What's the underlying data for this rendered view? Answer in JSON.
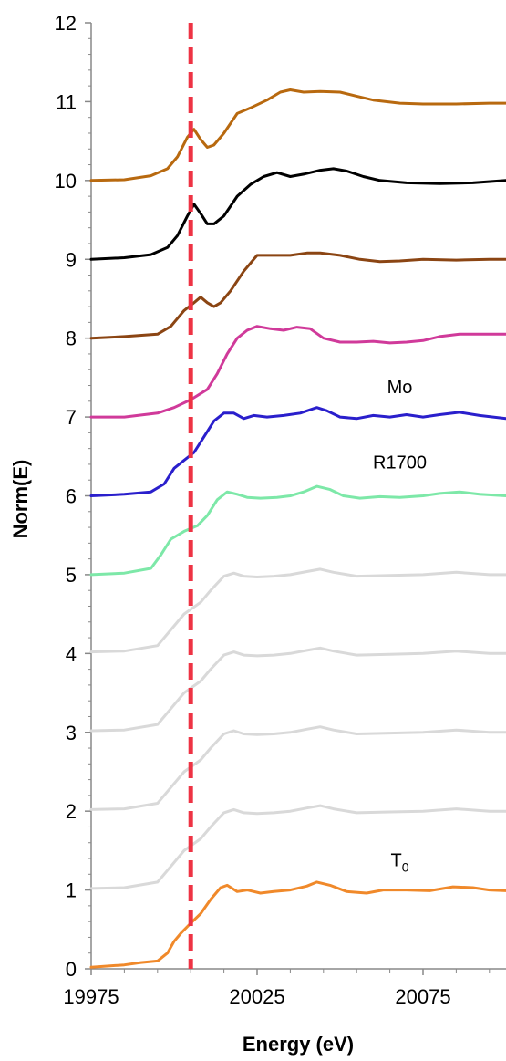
{
  "chart_data": {
    "type": "line",
    "xlabel": "Energy (eV)",
    "ylabel": "Norm(E)",
    "xlim": [
      19975,
      20100
    ],
    "ylim": [
      0,
      12
    ],
    "x_ticks": [
      19975,
      20025,
      20075
    ],
    "y_ticks": [
      0,
      1,
      2,
      3,
      4,
      5,
      6,
      7,
      8,
      9,
      10,
      11,
      12
    ],
    "grid": false,
    "reference_line": {
      "x": 20005,
      "color": "#ee3344",
      "style": "dashed"
    },
    "annotations": [
      {
        "text": "Mo",
        "x": 20068,
        "y": 7.3
      },
      {
        "text": "R1700",
        "x": 20068,
        "y": 6.35
      },
      {
        "text": "T",
        "subscript": "0",
        "x": 20068,
        "y": 1.3
      }
    ],
    "series": [
      {
        "color": "#f0892a",
        "width": 3,
        "points": [
          [
            19975,
            0.02
          ],
          [
            19985,
            0.05
          ],
          [
            19990,
            0.08
          ],
          [
            19995,
            0.1
          ],
          [
            19998,
            0.2
          ],
          [
            20000,
            0.35
          ],
          [
            20002,
            0.45
          ],
          [
            20005,
            0.58
          ],
          [
            20008,
            0.7
          ],
          [
            20011,
            0.88
          ],
          [
            20014,
            1.03
          ],
          [
            20016,
            1.06
          ],
          [
            20019,
            0.98
          ],
          [
            20022,
            1.0
          ],
          [
            20026,
            0.96
          ],
          [
            20030,
            0.98
          ],
          [
            20035,
            1.0
          ],
          [
            20040,
            1.05
          ],
          [
            20043,
            1.1
          ],
          [
            20047,
            1.06
          ],
          [
            20052,
            0.98
          ],
          [
            20058,
            0.96
          ],
          [
            20063,
            1.0
          ],
          [
            20070,
            1.0
          ],
          [
            20077,
            0.99
          ],
          [
            20084,
            1.04
          ],
          [
            20090,
            1.03
          ],
          [
            20095,
            1.0
          ],
          [
            20100,
            0.99
          ]
        ]
      },
      {
        "color": "#d9d9d9",
        "width": 3,
        "points": [
          [
            19975,
            1.02
          ],
          [
            19985,
            1.03
          ],
          [
            19995,
            1.1
          ],
          [
            19999,
            1.3
          ],
          [
            20003,
            1.5
          ],
          [
            20008,
            1.65
          ],
          [
            20011,
            1.8
          ],
          [
            20015,
            1.98
          ],
          [
            20018,
            2.02
          ],
          [
            20021,
            1.98
          ],
          [
            20025,
            1.97
          ],
          [
            20030,
            1.98
          ],
          [
            20035,
            2.0
          ],
          [
            20040,
            2.04
          ],
          [
            20044,
            2.07
          ],
          [
            20048,
            2.03
          ],
          [
            20055,
            1.98
          ],
          [
            20065,
            1.99
          ],
          [
            20075,
            2.0
          ],
          [
            20085,
            2.03
          ],
          [
            20095,
            2.0
          ],
          [
            20100,
            2.0
          ]
        ]
      },
      {
        "color": "#d9d9d9",
        "width": 3,
        "points": [
          [
            19975,
            2.02
          ],
          [
            19985,
            2.03
          ],
          [
            19995,
            2.1
          ],
          [
            19999,
            2.3
          ],
          [
            20003,
            2.5
          ],
          [
            20008,
            2.65
          ],
          [
            20011,
            2.8
          ],
          [
            20015,
            2.98
          ],
          [
            20018,
            3.02
          ],
          [
            20021,
            2.98
          ],
          [
            20025,
            2.97
          ],
          [
            20030,
            2.98
          ],
          [
            20035,
            3.0
          ],
          [
            20040,
            3.04
          ],
          [
            20044,
            3.07
          ],
          [
            20048,
            3.03
          ],
          [
            20055,
            2.98
          ],
          [
            20065,
            2.99
          ],
          [
            20075,
            3.0
          ],
          [
            20085,
            3.03
          ],
          [
            20095,
            3.0
          ],
          [
            20100,
            3.0
          ]
        ]
      },
      {
        "color": "#d9d9d9",
        "width": 3,
        "points": [
          [
            19975,
            3.02
          ],
          [
            19985,
            3.03
          ],
          [
            19995,
            3.1
          ],
          [
            19999,
            3.3
          ],
          [
            20003,
            3.5
          ],
          [
            20008,
            3.65
          ],
          [
            20011,
            3.8
          ],
          [
            20015,
            3.98
          ],
          [
            20018,
            4.02
          ],
          [
            20021,
            3.98
          ],
          [
            20025,
            3.97
          ],
          [
            20030,
            3.98
          ],
          [
            20035,
            4.0
          ],
          [
            20040,
            4.04
          ],
          [
            20044,
            4.07
          ],
          [
            20048,
            4.03
          ],
          [
            20055,
            3.98
          ],
          [
            20065,
            3.99
          ],
          [
            20075,
            4.0
          ],
          [
            20085,
            4.03
          ],
          [
            20095,
            4.0
          ],
          [
            20100,
            4.0
          ]
        ]
      },
      {
        "color": "#d9d9d9",
        "width": 3,
        "points": [
          [
            19975,
            4.02
          ],
          [
            19985,
            4.03
          ],
          [
            19995,
            4.1
          ],
          [
            19999,
            4.3
          ],
          [
            20003,
            4.5
          ],
          [
            20008,
            4.65
          ],
          [
            20011,
            4.8
          ],
          [
            20015,
            4.98
          ],
          [
            20018,
            5.02
          ],
          [
            20021,
            4.98
          ],
          [
            20025,
            4.97
          ],
          [
            20030,
            4.98
          ],
          [
            20035,
            5.0
          ],
          [
            20040,
            5.04
          ],
          [
            20044,
            5.07
          ],
          [
            20048,
            5.03
          ],
          [
            20055,
            4.98
          ],
          [
            20065,
            4.99
          ],
          [
            20075,
            5.0
          ],
          [
            20085,
            5.03
          ],
          [
            20095,
            5.0
          ],
          [
            20100,
            5.0
          ]
        ]
      },
      {
        "color": "#7de8a8",
        "width": 3,
        "points": [
          [
            19975,
            5.0
          ],
          [
            19985,
            5.02
          ],
          [
            19993,
            5.08
          ],
          [
            19996,
            5.25
          ],
          [
            19999,
            5.45
          ],
          [
            20003,
            5.55
          ],
          [
            20007,
            5.62
          ],
          [
            20010,
            5.75
          ],
          [
            20013,
            5.95
          ],
          [
            20016,
            6.05
          ],
          [
            20019,
            6.02
          ],
          [
            20022,
            5.98
          ],
          [
            20026,
            5.97
          ],
          [
            20031,
            5.98
          ],
          [
            20035,
            6.0
          ],
          [
            20039,
            6.05
          ],
          [
            20043,
            6.12
          ],
          [
            20047,
            6.08
          ],
          [
            20051,
            6.0
          ],
          [
            20056,
            5.97
          ],
          [
            20062,
            5.99
          ],
          [
            20068,
            5.98
          ],
          [
            20075,
            6.0
          ],
          [
            20080,
            6.03
          ],
          [
            20086,
            6.05
          ],
          [
            20092,
            6.02
          ],
          [
            20100,
            6.0
          ]
        ]
      },
      {
        "color": "#2a1fcc",
        "width": 3,
        "points": [
          [
            19975,
            6.0
          ],
          [
            19985,
            6.02
          ],
          [
            19993,
            6.05
          ],
          [
            19997,
            6.15
          ],
          [
            20000,
            6.35
          ],
          [
            20003,
            6.45
          ],
          [
            20006,
            6.55
          ],
          [
            20009,
            6.75
          ],
          [
            20012,
            6.95
          ],
          [
            20015,
            7.05
          ],
          [
            20018,
            7.05
          ],
          [
            20021,
            6.98
          ],
          [
            20024,
            7.02
          ],
          [
            20028,
            7.0
          ],
          [
            20033,
            7.02
          ],
          [
            20038,
            7.05
          ],
          [
            20043,
            7.12
          ],
          [
            20046,
            7.08
          ],
          [
            20050,
            7.0
          ],
          [
            20055,
            6.98
          ],
          [
            20060,
            7.02
          ],
          [
            20065,
            7.0
          ],
          [
            20070,
            7.03
          ],
          [
            20075,
            7.0
          ],
          [
            20080,
            7.03
          ],
          [
            20086,
            7.06
          ],
          [
            20092,
            7.02
          ],
          [
            20100,
            6.98
          ]
        ]
      },
      {
        "color": "#d03a9a",
        "width": 3,
        "points": [
          [
            19975,
            7.0
          ],
          [
            19985,
            7.0
          ],
          [
            19995,
            7.05
          ],
          [
            20000,
            7.12
          ],
          [
            20005,
            7.22
          ],
          [
            20010,
            7.35
          ],
          [
            20013,
            7.55
          ],
          [
            20016,
            7.8
          ],
          [
            20019,
            8.0
          ],
          [
            20022,
            8.1
          ],
          [
            20025,
            8.15
          ],
          [
            20029,
            8.12
          ],
          [
            20033,
            8.1
          ],
          [
            20037,
            8.14
          ],
          [
            20041,
            8.12
          ],
          [
            20045,
            8.0
          ],
          [
            20050,
            7.95
          ],
          [
            20055,
            7.95
          ],
          [
            20060,
            7.96
          ],
          [
            20065,
            7.94
          ],
          [
            20070,
            7.95
          ],
          [
            20075,
            7.97
          ],
          [
            20080,
            8.02
          ],
          [
            20086,
            8.05
          ],
          [
            20092,
            8.05
          ],
          [
            20100,
            8.05
          ]
        ]
      },
      {
        "color": "#8b4513",
        "width": 3,
        "points": [
          [
            19975,
            8.0
          ],
          [
            19985,
            8.02
          ],
          [
            19995,
            8.05
          ],
          [
            19999,
            8.15
          ],
          [
            20003,
            8.35
          ],
          [
            20006,
            8.45
          ],
          [
            20008,
            8.52
          ],
          [
            20010,
            8.45
          ],
          [
            20012,
            8.4
          ],
          [
            20014,
            8.45
          ],
          [
            20017,
            8.6
          ],
          [
            20021,
            8.85
          ],
          [
            20025,
            9.05
          ],
          [
            20030,
            9.05
          ],
          [
            20035,
            9.05
          ],
          [
            20040,
            9.08
          ],
          [
            20044,
            9.08
          ],
          [
            20050,
            9.05
          ],
          [
            20056,
            9.0
          ],
          [
            20062,
            8.97
          ],
          [
            20068,
            8.98
          ],
          [
            20075,
            9.0
          ],
          [
            20085,
            8.99
          ],
          [
            20095,
            9.0
          ],
          [
            20100,
            9.0
          ]
        ]
      },
      {
        "color": "#000000",
        "width": 3,
        "points": [
          [
            19975,
            9.0
          ],
          [
            19985,
            9.02
          ],
          [
            19993,
            9.06
          ],
          [
            19998,
            9.15
          ],
          [
            20001,
            9.3
          ],
          [
            20004,
            9.55
          ],
          [
            20006,
            9.7
          ],
          [
            20008,
            9.58
          ],
          [
            20010,
            9.45
          ],
          [
            20012,
            9.45
          ],
          [
            20015,
            9.55
          ],
          [
            20019,
            9.8
          ],
          [
            20023,
            9.95
          ],
          [
            20027,
            10.05
          ],
          [
            20031,
            10.1
          ],
          [
            20035,
            10.05
          ],
          [
            20039,
            10.08
          ],
          [
            20044,
            10.13
          ],
          [
            20048,
            10.15
          ],
          [
            20052,
            10.12
          ],
          [
            20057,
            10.05
          ],
          [
            20062,
            10.0
          ],
          [
            20070,
            9.97
          ],
          [
            20080,
            9.96
          ],
          [
            20090,
            9.97
          ],
          [
            20100,
            10.0
          ]
        ]
      },
      {
        "color": "#b8690f",
        "width": 3,
        "points": [
          [
            19975,
            10.0
          ],
          [
            19985,
            10.01
          ],
          [
            19993,
            10.06
          ],
          [
            19998,
            10.15
          ],
          [
            20001,
            10.3
          ],
          [
            20004,
            10.55
          ],
          [
            20006,
            10.65
          ],
          [
            20008,
            10.52
          ],
          [
            20010,
            10.42
          ],
          [
            20012,
            10.45
          ],
          [
            20015,
            10.6
          ],
          [
            20019,
            10.85
          ],
          [
            20023,
            10.92
          ],
          [
            20028,
            11.02
          ],
          [
            20032,
            11.12
          ],
          [
            20035,
            11.15
          ],
          [
            20039,
            11.12
          ],
          [
            20044,
            11.13
          ],
          [
            20050,
            11.12
          ],
          [
            20055,
            11.07
          ],
          [
            20060,
            11.02
          ],
          [
            20068,
            10.98
          ],
          [
            20075,
            10.97
          ],
          [
            20085,
            10.97
          ],
          [
            20095,
            10.98
          ],
          [
            20100,
            10.98
          ]
        ]
      }
    ]
  }
}
